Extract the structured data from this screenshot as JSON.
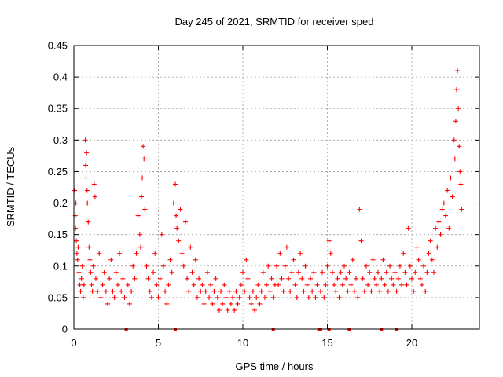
{
  "chart_data": {
    "type": "scatter",
    "title": "Day 245 of 2021, SRMTID for receiver sped",
    "xlabel": "GPS time / hours",
    "ylabel": "SRMTID / TECUs",
    "xlim": [
      0,
      24
    ],
    "ylim": [
      0,
      0.45
    ],
    "x_ticks": [
      0,
      5,
      10,
      15,
      20
    ],
    "x_tick_labels": [
      "0",
      "5",
      "10",
      "15",
      "20"
    ],
    "y_ticks": [
      0,
      0.05,
      0.1,
      0.15,
      0.2,
      0.25,
      0.3,
      0.35,
      0.4,
      0.45
    ],
    "y_tick_labels": [
      "0",
      "0.05",
      "0.1",
      "0.15",
      "0.2",
      "0.25",
      "0.3",
      "0.35",
      "0.4",
      "0.45"
    ],
    "grid": true,
    "marker": "+",
    "color": "#ff0000",
    "zero_markers_x": [
      3.1,
      6.0,
      11.8,
      14.5,
      14.6,
      15.1,
      16.3,
      18.2,
      19.1
    ],
    "series": [
      {
        "name": "SRMTID",
        "points": [
          [
            0.05,
            0.22
          ],
          [
            0.08,
            0.18
          ],
          [
            0.1,
            0.16
          ],
          [
            0.12,
            0.2
          ],
          [
            0.15,
            0.14
          ],
          [
            0.18,
            0.12
          ],
          [
            0.22,
            0.11
          ],
          [
            0.25,
            0.13
          ],
          [
            0.3,
            0.09
          ],
          [
            0.35,
            0.07
          ],
          [
            0.4,
            0.06
          ],
          [
            0.45,
            0.08
          ],
          [
            0.5,
            0.1
          ],
          [
            0.55,
            0.05
          ],
          [
            0.6,
            0.07
          ],
          [
            0.68,
            0.3
          ],
          [
            0.7,
            0.26
          ],
          [
            0.72,
            0.24
          ],
          [
            0.75,
            0.28
          ],
          [
            0.78,
            0.22
          ],
          [
            0.8,
            0.2
          ],
          [
            0.85,
            0.17
          ],
          [
            0.9,
            0.13
          ],
          [
            0.95,
            0.11
          ],
          [
            1.0,
            0.09
          ],
          [
            1.05,
            0.07
          ],
          [
            1.1,
            0.06
          ],
          [
            1.15,
            0.1
          ],
          [
            1.2,
            0.23
          ],
          [
            1.25,
            0.21
          ],
          [
            1.3,
            0.08
          ],
          [
            1.4,
            0.06
          ],
          [
            1.5,
            0.12
          ],
          [
            1.6,
            0.05
          ],
          [
            1.7,
            0.07
          ],
          [
            1.8,
            0.09
          ],
          [
            1.9,
            0.06
          ],
          [
            2.0,
            0.04
          ],
          [
            2.1,
            0.08
          ],
          [
            2.2,
            0.11
          ],
          [
            2.3,
            0.06
          ],
          [
            2.4,
            0.05
          ],
          [
            2.5,
            0.09
          ],
          [
            2.6,
            0.07
          ],
          [
            2.7,
            0.12
          ],
          [
            2.8,
            0.06
          ],
          [
            2.9,
            0.08
          ],
          [
            3.0,
            0.05
          ],
          [
            3.2,
            0.07
          ],
          [
            3.3,
            0.04
          ],
          [
            3.4,
            0.06
          ],
          [
            3.5,
            0.1
          ],
          [
            3.6,
            0.08
          ],
          [
            3.7,
            0.12
          ],
          [
            3.8,
            0.18
          ],
          [
            3.9,
            0.15
          ],
          [
            3.95,
            0.13
          ],
          [
            4.0,
            0.21
          ],
          [
            4.05,
            0.24
          ],
          [
            4.1,
            0.29
          ],
          [
            4.15,
            0.27
          ],
          [
            4.2,
            0.19
          ],
          [
            4.3,
            0.1
          ],
          [
            4.4,
            0.08
          ],
          [
            4.5,
            0.06
          ],
          [
            4.6,
            0.05
          ],
          [
            4.7,
            0.09
          ],
          [
            4.8,
            0.12
          ],
          [
            4.9,
            0.07
          ],
          [
            5.0,
            0.05
          ],
          [
            5.1,
            0.08
          ],
          [
            5.2,
            0.15
          ],
          [
            5.3,
            0.1
          ],
          [
            5.4,
            0.06
          ],
          [
            5.5,
            0.04
          ],
          [
            5.6,
            0.07
          ],
          [
            5.7,
            0.11
          ],
          [
            5.8,
            0.09
          ],
          [
            5.9,
            0.2
          ],
          [
            6.0,
            0.23
          ],
          [
            6.05,
            0.18
          ],
          [
            6.1,
            0.16
          ],
          [
            6.2,
            0.14
          ],
          [
            6.3,
            0.19
          ],
          [
            6.4,
            0.12
          ],
          [
            6.5,
            0.1
          ],
          [
            6.6,
            0.17
          ],
          [
            6.7,
            0.08
          ],
          [
            6.8,
            0.06
          ],
          [
            6.9,
            0.13
          ],
          [
            7.0,
            0.09
          ],
          [
            7.1,
            0.07
          ],
          [
            7.2,
            0.11
          ],
          [
            7.3,
            0.05
          ],
          [
            7.4,
            0.08
          ],
          [
            7.5,
            0.06
          ],
          [
            7.6,
            0.07
          ],
          [
            7.7,
            0.04
          ],
          [
            7.8,
            0.06
          ],
          [
            7.9,
            0.09
          ],
          [
            8.0,
            0.05
          ],
          [
            8.1,
            0.07
          ],
          [
            8.2,
            0.04
          ],
          [
            8.3,
            0.06
          ],
          [
            8.4,
            0.08
          ],
          [
            8.5,
            0.05
          ],
          [
            8.6,
            0.03
          ],
          [
            8.7,
            0.06
          ],
          [
            8.8,
            0.04
          ],
          [
            8.9,
            0.07
          ],
          [
            9.0,
            0.05
          ],
          [
            9.1,
            0.03
          ],
          [
            9.2,
            0.06
          ],
          [
            9.3,
            0.04
          ],
          [
            9.4,
            0.05
          ],
          [
            9.5,
            0.03
          ],
          [
            9.6,
            0.06
          ],
          [
            9.7,
            0.04
          ],
          [
            9.8,
            0.05
          ],
          [
            9.9,
            0.07
          ],
          [
            10.0,
            0.09
          ],
          [
            10.1,
            0.06
          ],
          [
            10.2,
            0.11
          ],
          [
            10.3,
            0.08
          ],
          [
            10.4,
            0.05
          ],
          [
            10.5,
            0.04
          ],
          [
            10.6,
            0.06
          ],
          [
            10.7,
            0.03
          ],
          [
            10.8,
            0.05
          ],
          [
            10.9,
            0.07
          ],
          [
            11.0,
            0.04
          ],
          [
            11.1,
            0.06
          ],
          [
            11.2,
            0.09
          ],
          [
            11.3,
            0.05
          ],
          [
            11.4,
            0.07
          ],
          [
            11.5,
            0.1
          ],
          [
            11.6,
            0.06
          ],
          [
            11.7,
            0.08
          ],
          [
            11.8,
            0.05
          ],
          [
            11.9,
            0.07
          ],
          [
            12.0,
            0.1
          ],
          [
            12.1,
            0.07
          ],
          [
            12.2,
            0.12
          ],
          [
            12.3,
            0.08
          ],
          [
            12.4,
            0.06
          ],
          [
            12.5,
            0.1
          ],
          [
            12.6,
            0.13
          ],
          [
            12.7,
            0.08
          ],
          [
            12.8,
            0.06
          ],
          [
            12.9,
            0.09
          ],
          [
            13.0,
            0.11
          ],
          [
            13.1,
            0.07
          ],
          [
            13.2,
            0.05
          ],
          [
            13.3,
            0.09
          ],
          [
            13.4,
            0.12
          ],
          [
            13.5,
            0.08
          ],
          [
            13.6,
            0.06
          ],
          [
            13.7,
            0.1
          ],
          [
            13.8,
            0.07
          ],
          [
            13.9,
            0.05
          ],
          [
            14.0,
            0.08
          ],
          [
            14.1,
            0.06
          ],
          [
            14.2,
            0.09
          ],
          [
            14.3,
            0.05
          ],
          [
            14.4,
            0.07
          ],
          [
            14.6,
            0.06
          ],
          [
            14.7,
            0.09
          ],
          [
            14.8,
            0.05
          ],
          [
            14.9,
            0.07
          ],
          [
            15.0,
            0.1
          ],
          [
            15.1,
            0.14
          ],
          [
            15.2,
            0.12
          ],
          [
            15.3,
            0.09
          ],
          [
            15.4,
            0.07
          ],
          [
            15.5,
            0.06
          ],
          [
            15.6,
            0.08
          ],
          [
            15.7,
            0.05
          ],
          [
            15.8,
            0.09
          ],
          [
            15.9,
            0.07
          ],
          [
            16.0,
            0.1
          ],
          [
            16.1,
            0.08
          ],
          [
            16.2,
            0.06
          ],
          [
            16.3,
            0.09
          ],
          [
            16.4,
            0.07
          ],
          [
            16.5,
            0.11
          ],
          [
            16.6,
            0.06
          ],
          [
            16.7,
            0.08
          ],
          [
            16.8,
            0.05
          ],
          [
            16.9,
            0.19
          ],
          [
            17.0,
            0.14
          ],
          [
            17.1,
            0.08
          ],
          [
            17.2,
            0.06
          ],
          [
            17.3,
            0.1
          ],
          [
            17.4,
            0.07
          ],
          [
            17.5,
            0.09
          ],
          [
            17.6,
            0.06
          ],
          [
            17.7,
            0.11
          ],
          [
            17.8,
            0.08
          ],
          [
            17.9,
            0.07
          ],
          [
            18.0,
            0.09
          ],
          [
            18.1,
            0.06
          ],
          [
            18.2,
            0.08
          ],
          [
            18.3,
            0.11
          ],
          [
            18.4,
            0.07
          ],
          [
            18.5,
            0.09
          ],
          [
            18.6,
            0.06
          ],
          [
            18.7,
            0.1
          ],
          [
            18.8,
            0.08
          ],
          [
            18.9,
            0.07
          ],
          [
            19.0,
            0.09
          ],
          [
            19.1,
            0.06
          ],
          [
            19.2,
            0.08
          ],
          [
            19.3,
            0.1
          ],
          [
            19.4,
            0.07
          ],
          [
            19.5,
            0.12
          ],
          [
            19.6,
            0.09
          ],
          [
            19.7,
            0.07
          ],
          [
            19.8,
            0.16
          ],
          [
            19.9,
            0.1
          ],
          [
            20.0,
            0.08
          ],
          [
            20.1,
            0.06
          ],
          [
            20.2,
            0.09
          ],
          [
            20.3,
            0.13
          ],
          [
            20.4,
            0.11
          ],
          [
            20.5,
            0.08
          ],
          [
            20.6,
            0.07
          ],
          [
            20.7,
            0.1
          ],
          [
            20.8,
            0.06
          ],
          [
            20.9,
            0.09
          ],
          [
            21.0,
            0.12
          ],
          [
            21.1,
            0.14
          ],
          [
            21.2,
            0.11
          ],
          [
            21.3,
            0.09
          ],
          [
            21.4,
            0.16
          ],
          [
            21.5,
            0.13
          ],
          [
            21.6,
            0.17
          ],
          [
            21.7,
            0.15
          ],
          [
            21.8,
            0.19
          ],
          [
            21.9,
            0.2
          ],
          [
            22.0,
            0.18
          ],
          [
            22.1,
            0.22
          ],
          [
            22.2,
            0.16
          ],
          [
            22.3,
            0.24
          ],
          [
            22.4,
            0.21
          ],
          [
            22.5,
            0.3
          ],
          [
            22.55,
            0.27
          ],
          [
            22.6,
            0.33
          ],
          [
            22.65,
            0.38
          ],
          [
            22.7,
            0.41
          ],
          [
            22.75,
            0.35
          ],
          [
            22.8,
            0.29
          ],
          [
            22.85,
            0.25
          ],
          [
            22.9,
            0.23
          ],
          [
            22.95,
            0.19
          ]
        ]
      }
    ]
  }
}
